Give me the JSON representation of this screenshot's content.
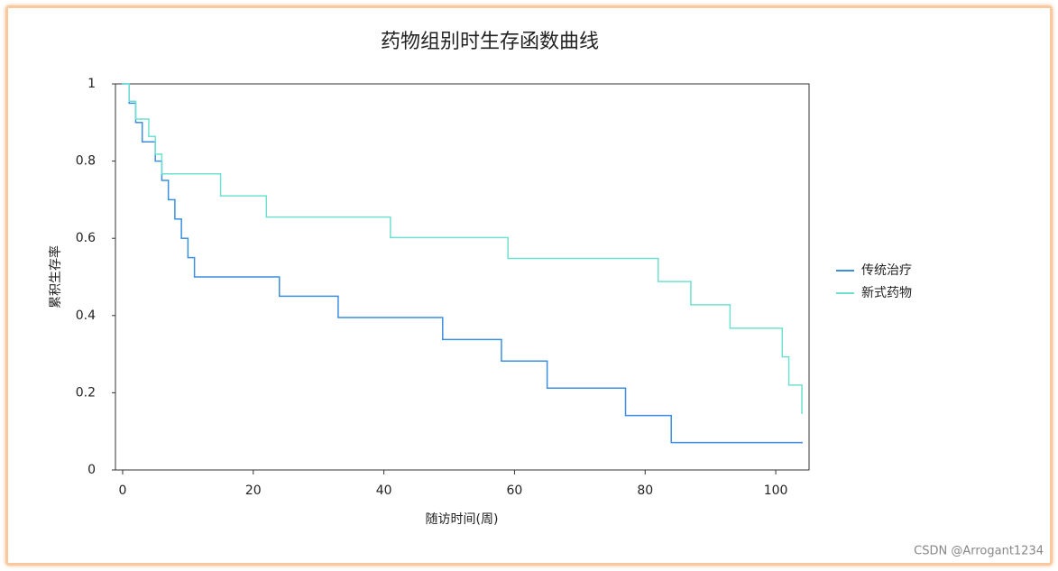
{
  "chart_data": {
    "type": "step",
    "title": "药物组别时生存函数曲线",
    "x_label": "随访时间(周)",
    "y_label": "累积生存率",
    "xlim": [
      -1.1,
      105.1
    ],
    "xticks": [
      0,
      20,
      40,
      60,
      80,
      100
    ],
    "ylim": [
      0,
      1
    ],
    "yticks": [
      0,
      0.2,
      0.4,
      0.6,
      0.8,
      1
    ],
    "legend": "right",
    "series": [
      {
        "name": "传统治疗",
        "color": "#3c8fe0",
        "x": [
          0,
          1,
          2,
          3,
          5,
          6,
          7,
          8,
          9,
          10,
          11,
          24,
          33,
          49,
          58,
          65,
          77,
          84,
          104
        ],
        "values": [
          1,
          0.95,
          0.9,
          0.85,
          0.8,
          0.75,
          0.7,
          0.65,
          0.6,
          0.55,
          0.5,
          0.45,
          0.395,
          0.338,
          0.282,
          0.212,
          0.141,
          0.071,
          0.071
        ]
      },
      {
        "name": "新式药物",
        "color": "#6fe0cf",
        "x": [
          0,
          1,
          2,
          4,
          5,
          6,
          15,
          22,
          41,
          59,
          82,
          87,
          93,
          101,
          102,
          104
        ],
        "values": [
          1,
          0.955,
          0.909,
          0.864,
          0.818,
          0.767,
          0.71,
          0.655,
          0.602,
          0.548,
          0.488,
          0.428,
          0.367,
          0.293,
          0.22,
          0.147
        ]
      }
    ],
    "watermark": "CSDN @Arrogant1234"
  }
}
